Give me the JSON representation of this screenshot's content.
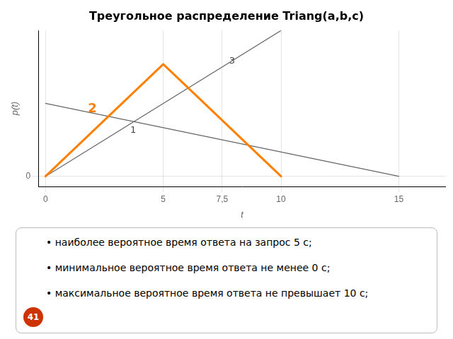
{
  "chart_data": {
    "type": "line",
    "title": "Треугольное распределение Triang(a,b,c)",
    "xlabel": "t",
    "ylabel": "p(t)",
    "xlim": [
      -0.3,
      17
    ],
    "ylim": [
      -0.018,
      0.26
    ],
    "xticks": [
      0,
      5,
      {
        "value": 7.5,
        "label": "7,5"
      },
      10,
      15
    ],
    "yticks": [
      0
    ],
    "grid": true,
    "series": [
      {
        "x": [
          0,
          5,
          10
        ],
        "values": [
          0,
          0.2,
          0
        ],
        "color": "#FF8000"
      },
      {
        "x": [
          0,
          15
        ],
        "values": [
          0.13,
          0.0
        ],
        "color": "#666666"
      },
      {
        "x": [
          0,
          10
        ],
        "values": [
          0.0,
          0.26
        ],
        "color": "#666666"
      }
    ],
    "annotations": [
      {
        "text": "2",
        "x": 1.8,
        "y": 0.12,
        "color": "#FF8000"
      },
      {
        "text": "1",
        "x": 3.6,
        "y": 0.082
      },
      {
        "text": "3",
        "x": 7.8,
        "y": 0.205
      },
      {
        "text": "• наиболее вероятное время ответа на запрос 5 с;"
      },
      {
        "text": "• минимальное вероятное время ответа не менее 0 с;"
      },
      {
        "text": "• максимальное вероятное время ответа не превышает 10 с;"
      },
      {
        "text": "41",
        "color": "#CC3300"
      }
    ]
  }
}
